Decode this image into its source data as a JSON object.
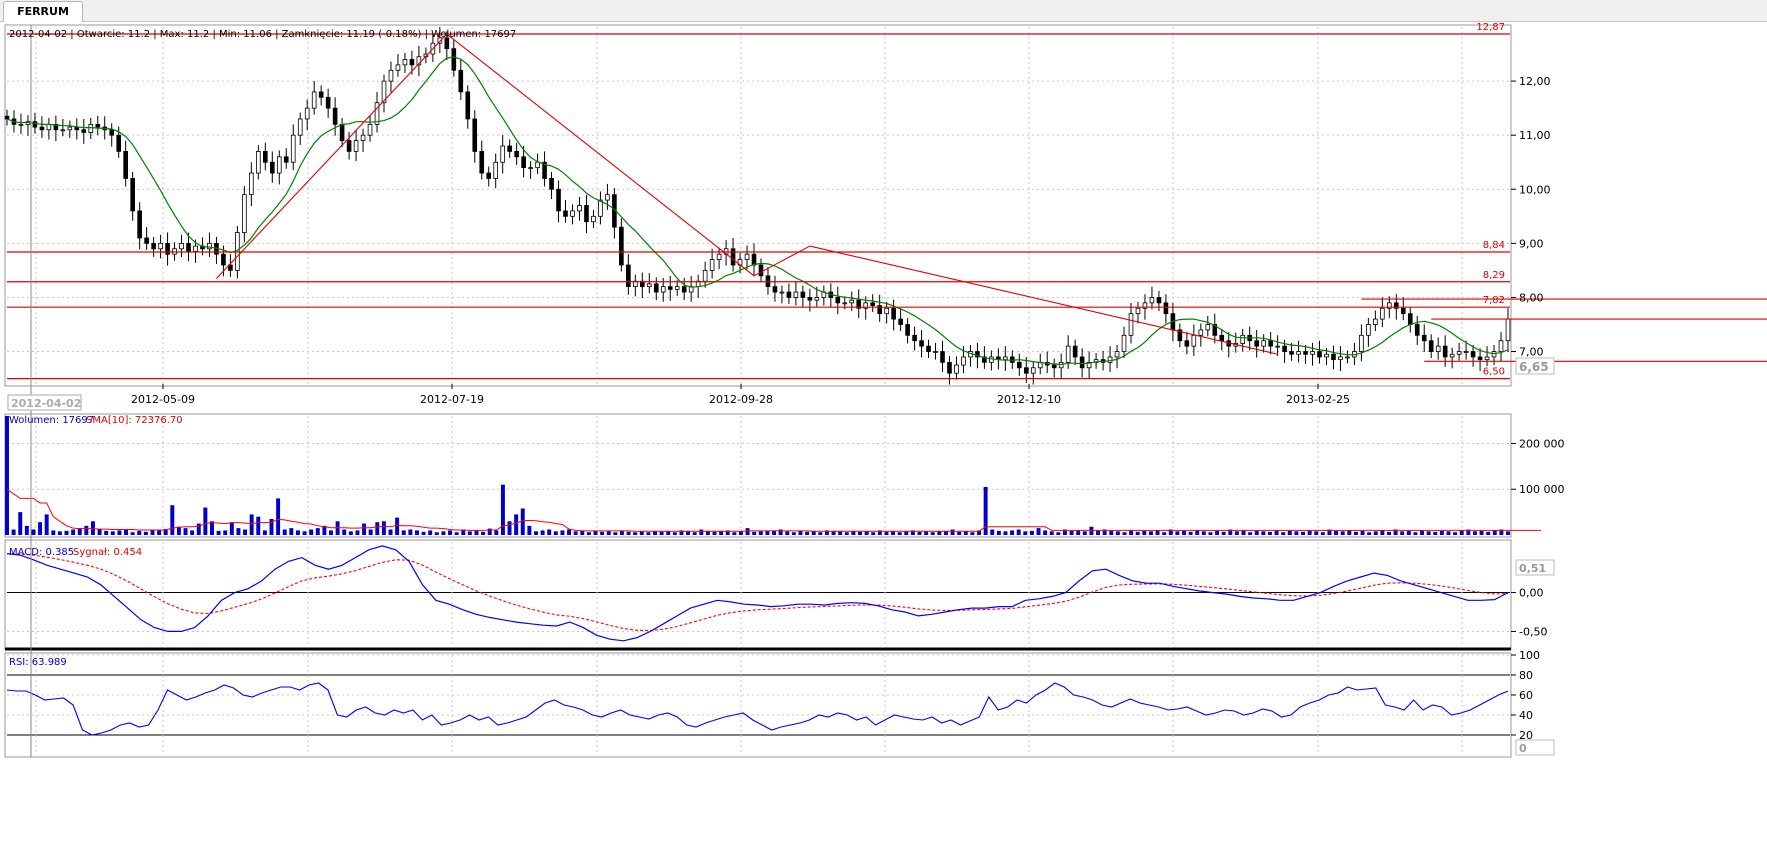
{
  "tab": {
    "label": "FERRUM"
  },
  "info_bar": "2012-04-02 | Otwarcie: 11.2 | Max: 11.2 | Min: 11.06 | Zamknięcie: 11.19 (-0.18%)  | Wolumen: 17697",
  "colors": {
    "candle": "#000000",
    "sma": "#008000",
    "level": "#e00000",
    "volume": "#0000cc",
    "macd": "#0000ff",
    "signal": "#ff0000",
    "rsi": "#0000ff",
    "grid": "#c8c8c8"
  },
  "chart_data": [
    {
      "type": "candlestick",
      "panel": "price",
      "x_labels": [
        "2012-05-09",
        "2012-07-19",
        "2012-09-28",
        "2012-12-10",
        "2013-02-25"
      ],
      "cursor_date": "2012-04-02",
      "y_ticks": [
        "12,00",
        "11,00",
        "10,00",
        "9,00",
        "8,00",
        "7,00"
      ],
      "ylim": [
        6.4,
        13.0
      ],
      "last_price_label": "6,65",
      "levels": [
        {
          "value": 12.87,
          "label": "12,87"
        },
        {
          "value": 8.84,
          "label": "8,84"
        },
        {
          "value": 8.29,
          "label": "8,29"
        },
        {
          "value": 7.82,
          "label": "7,82"
        },
        {
          "value": 6.5,
          "label": "6,50"
        }
      ],
      "overlay": "moving average",
      "close_series": [
        11.3,
        11.2,
        11.2,
        11.25,
        11.15,
        11.1,
        11.2,
        11.1,
        11.1,
        11.15,
        11.1,
        11.05,
        11.2,
        11.15,
        11.1,
        11.0,
        10.7,
        10.2,
        9.6,
        9.1,
        9.0,
        8.9,
        9.0,
        8.8,
        8.9,
        9.0,
        8.85,
        8.95,
        8.9,
        9.0,
        8.8,
        8.6,
        8.5,
        9.2,
        9.9,
        10.3,
        10.7,
        10.5,
        10.3,
        10.6,
        10.5,
        11.0,
        11.3,
        11.5,
        11.8,
        11.7,
        11.5,
        11.2,
        10.9,
        10.7,
        10.9,
        11.0,
        11.2,
        11.6,
        12.0,
        12.2,
        12.3,
        12.4,
        12.3,
        12.45,
        12.5,
        12.7,
        12.8,
        12.6,
        12.2,
        11.8,
        11.3,
        10.7,
        10.3,
        10.2,
        10.5,
        10.8,
        10.7,
        10.6,
        10.4,
        10.4,
        10.5,
        10.2,
        10.0,
        9.6,
        9.5,
        9.6,
        9.7,
        9.4,
        9.5,
        9.8,
        9.9,
        9.3,
        8.6,
        8.2,
        8.3,
        8.2,
        8.25,
        8.1,
        8.2,
        8.15,
        8.2,
        8.1,
        8.2,
        8.3,
        8.5,
        8.7,
        8.8,
        8.9,
        8.6,
        8.7,
        8.8,
        8.6,
        8.4,
        8.2,
        8.1,
        8.1,
        8.0,
        8.1,
        8.0,
        7.95,
        8.0,
        8.1,
        8.0,
        7.9,
        7.9,
        7.95,
        7.8,
        7.9,
        7.85,
        7.7,
        7.8,
        7.6,
        7.5,
        7.3,
        7.2,
        7.1,
        7.0,
        7.0,
        6.8,
        6.6,
        6.75,
        6.9,
        7.0,
        6.9,
        6.8,
        6.9,
        6.85,
        6.9,
        6.8,
        6.7,
        6.6,
        6.7,
        6.8,
        6.75,
        6.7,
        6.8,
        7.1,
        6.9,
        6.7,
        6.8,
        6.85,
        6.8,
        6.9,
        7.0,
        7.3,
        7.7,
        7.8,
        7.9,
        8.0,
        7.9,
        7.7,
        7.4,
        7.2,
        7.1,
        7.3,
        7.4,
        7.5,
        7.3,
        7.2,
        7.1,
        7.15,
        7.3,
        7.2,
        7.1,
        7.2,
        7.1,
        7.1,
        7.0,
        6.95,
        7.0,
        6.95,
        7.0,
        6.9,
        6.95,
        6.85,
        6.9,
        6.9,
        7.0,
        7.3,
        7.5,
        7.6,
        7.8,
        7.9,
        7.8,
        7.7,
        7.5,
        7.3,
        7.2,
        7.0,
        7.1,
        6.9,
        6.95,
        7.0,
        7.0,
        6.9,
        6.85,
        6.9,
        7.0,
        7.2,
        7.6
      ]
    },
    {
      "type": "bar",
      "panel": "volume",
      "title": "Wolumen: 17697",
      "overlay_label": "SMA[10]: 72376.70",
      "y_ticks": [
        "200 000",
        "100 000"
      ],
      "ylim": [
        0,
        260000
      ],
      "bar_values": [
        260000,
        12000,
        50000,
        20000,
        12000,
        28000,
        45000,
        10000,
        8000,
        9000,
        12000,
        15000,
        20000,
        30000,
        12000,
        9000,
        8000,
        10000,
        12000,
        6000,
        9000,
        7000,
        10000,
        11000,
        13000,
        65000,
        18000,
        15000,
        10000,
        25000,
        60000,
        30000,
        9000,
        10000,
        28000,
        15000,
        12000,
        45000,
        40000,
        10000,
        35000,
        80000,
        12000,
        15000,
        10000,
        8000,
        12000,
        15000,
        20000,
        10000,
        30000,
        12000,
        8000,
        10000,
        25000,
        12000,
        28000,
        30000,
        12000,
        38000,
        10000,
        12000,
        10000,
        7000,
        10000,
        6000,
        8000,
        10000,
        6000,
        12000,
        8000,
        10000,
        7000,
        14000,
        10000,
        110000,
        30000,
        45000,
        58000,
        20000,
        8000,
        10000,
        12000,
        8000,
        10000,
        12000,
        8000,
        10000,
        6000,
        9000,
        7000,
        8000,
        6000,
        10000,
        7000,
        6000,
        8000,
        6000,
        9000,
        7000,
        8000,
        6000,
        10000,
        8000,
        6000,
        12000,
        8000,
        7000,
        9000,
        10000,
        6000,
        8000,
        15000,
        7000,
        8000,
        9000,
        10000,
        12000,
        8000,
        6000,
        9000,
        7000,
        8000,
        6000,
        10000,
        9000,
        8000,
        6000,
        9000,
        7000,
        8000,
        6000,
        10000,
        7000,
        9000,
        6000,
        8000,
        10000,
        7000,
        8000,
        6000,
        9000,
        8000,
        12000,
        7000,
        8000,
        6000,
        10000,
        105000,
        12000,
        9000,
        8000,
        10000,
        12000,
        8000,
        9000,
        15000,
        10000,
        8000,
        6000,
        12000,
        9000,
        10000,
        8000,
        18000,
        10000,
        12000,
        9000,
        8000,
        6000,
        10000,
        7000,
        9000,
        8000,
        10000,
        6000,
        12000,
        8000,
        9000,
        7000,
        10000,
        8000,
        6000,
        9000,
        7000,
        12000,
        8000,
        10000,
        6000,
        9000,
        8000,
        7000,
        10000,
        6000,
        9000,
        8000,
        7000,
        10000,
        8000,
        6000,
        12000,
        9000,
        8000,
        10000,
        7000,
        9000,
        6000,
        8000,
        10000,
        7000,
        12000,
        8000,
        9000,
        6000,
        10000,
        8000,
        7000,
        9000,
        8000,
        6000,
        10000,
        12000,
        8000,
        9000,
        7000,
        10000,
        12000,
        8000
      ],
      "sma_values": [
        100000,
        90000,
        80000,
        80000,
        80000,
        70000,
        70000,
        40000,
        30000,
        20000,
        15000,
        14000,
        14000,
        14000,
        13000,
        13000,
        12000,
        12000,
        12000,
        12000,
        11000,
        11000,
        11000,
        11000,
        11000,
        15000,
        17000,
        18000,
        18000,
        19000,
        25000,
        27000,
        26000,
        25000,
        27000,
        27000,
        26000,
        25000,
        27000,
        27000,
        28000,
        34000,
        33000,
        30000,
        28000,
        25000,
        24000,
        20000,
        18000,
        16000,
        16000,
        16000,
        15000,
        15000,
        16000,
        16000,
        18000,
        19000,
        18000,
        21000,
        20000,
        20000,
        19000,
        17000,
        15000,
        15000,
        14000,
        12000,
        11000,
        11000,
        10000,
        10000,
        10000,
        11000,
        11000,
        20000,
        22000,
        26000,
        31000,
        32000,
        31000,
        29000,
        28000,
        25000,
        23000,
        13000,
        10000,
        9000,
        9000,
        9000,
        9000,
        9000,
        9000,
        9000,
        9000,
        8000,
        8000,
        8000,
        8000,
        8000,
        8000,
        8000,
        8000,
        8000,
        8000,
        8000,
        8000,
        8000,
        8000,
        8000,
        8000,
        8000,
        9000,
        9000,
        9000,
        9000,
        9000,
        9000,
        9000,
        9000,
        9000,
        9000,
        8000,
        8000,
        8000,
        8000,
        8000,
        8000,
        8000,
        8000,
        8000,
        8000,
        8000,
        8000,
        8000,
        8000,
        8000,
        8000,
        8000,
        8000,
        8000,
        8000,
        8000,
        8000,
        8000,
        8000,
        8000,
        8000,
        18000,
        18000,
        18000,
        18000,
        18000,
        18000,
        18000,
        18000,
        18000,
        18000,
        10000,
        10000,
        10000,
        10000,
        10000,
        10000,
        10000,
        10000,
        10000,
        10000,
        10000,
        10000,
        10000,
        10000,
        10000,
        10000,
        10000,
        10000,
        10000,
        10000,
        10000,
        10000,
        10000,
        10000,
        10000,
        10000,
        10000,
        10000,
        10000,
        10000,
        10000,
        10000,
        10000,
        10000,
        10000,
        10000,
        10000,
        10000,
        10000,
        10000,
        10000,
        10000,
        10000,
        10000,
        10000,
        10000,
        10000,
        10000,
        10000,
        10000,
        10000,
        10000,
        10000,
        10000,
        10000,
        10000,
        10000,
        10000,
        10000,
        10000,
        10000,
        10000,
        10000,
        10000,
        10000,
        10000,
        10000,
        10000,
        10000,
        10000,
        10000,
        10000,
        10000,
        10000,
        10000
      ]
    },
    {
      "type": "line",
      "panel": "macd",
      "title": "MACD: 0.385",
      "signal_label": "Sygnał: 0.454",
      "y_ticks": [
        "0,00",
        "-0,50"
      ],
      "last_value_label": "0,51",
      "ylim": [
        -0.7,
        0.65
      ],
      "macd_values": [
        0.5,
        0.48,
        0.42,
        0.35,
        0.3,
        0.25,
        0.2,
        0.1,
        -0.05,
        -0.2,
        -0.35,
        -0.45,
        -0.5,
        -0.5,
        -0.45,
        -0.3,
        -0.1,
        0.0,
        0.05,
        0.15,
        0.3,
        0.4,
        0.45,
        0.35,
        0.3,
        0.35,
        0.45,
        0.55,
        0.6,
        0.55,
        0.4,
        0.1,
        -0.1,
        -0.15,
        -0.22,
        -0.28,
        -0.32,
        -0.35,
        -0.38,
        -0.4,
        -0.42,
        -0.43,
        -0.38,
        -0.45,
        -0.55,
        -0.6,
        -0.62,
        -0.58,
        -0.5,
        -0.4,
        -0.3,
        -0.2,
        -0.15,
        -0.1,
        -0.12,
        -0.15,
        -0.16,
        -0.18,
        -0.17,
        -0.15,
        -0.15,
        -0.16,
        -0.14,
        -0.13,
        -0.14,
        -0.17,
        -0.22,
        -0.25,
        -0.3,
        -0.28,
        -0.25,
        -0.22,
        -0.2,
        -0.2,
        -0.18,
        -0.18,
        -0.1,
        -0.08,
        -0.05,
        0.0,
        0.15,
        0.28,
        0.3,
        0.22,
        0.15,
        0.12,
        0.12,
        0.08,
        0.05,
        0.02,
        0.0,
        -0.02,
        -0.05,
        -0.07,
        -0.08,
        -0.1,
        -0.1,
        -0.05,
        0.0,
        0.08,
        0.15,
        0.2,
        0.25,
        0.22,
        0.15,
        0.1,
        0.05,
        0.0,
        -0.05,
        -0.1,
        -0.1,
        -0.09,
        0.0
      ]
    },
    {
      "type": "line",
      "panel": "rsi",
      "title": "RSI: 63.989",
      "y_ticks": [
        "100",
        "80",
        "60",
        "40",
        "20"
      ],
      "last_value_label": "0",
      "ylim": [
        0,
        100
      ],
      "rsi_values": [
        65,
        64,
        64,
        60,
        55,
        56,
        57,
        50,
        25,
        20,
        22,
        25,
        30,
        32,
        28,
        30,
        45,
        65,
        60,
        55,
        58,
        62,
        65,
        70,
        67,
        60,
        58,
        62,
        65,
        68,
        68,
        65,
        70,
        72,
        65,
        40,
        38,
        45,
        48,
        42,
        40,
        45,
        42,
        45,
        35,
        40,
        30,
        32,
        35,
        40,
        35,
        38,
        30,
        32,
        35,
        38,
        45,
        52,
        55,
        50,
        48,
        45,
        40,
        38,
        42,
        45,
        40,
        38,
        36,
        40,
        42,
        38,
        30,
        28,
        32,
        35,
        38,
        40,
        42,
        35,
        30,
        25,
        28,
        30,
        32,
        35,
        40,
        38,
        42,
        40,
        35,
        38,
        30,
        35,
        40,
        38,
        36,
        35,
        38,
        32,
        35,
        30,
        34,
        38,
        58,
        45,
        48,
        55,
        52,
        60,
        65,
        72,
        68,
        60,
        58,
        55,
        50,
        48,
        52,
        56,
        52,
        50,
        48,
        45,
        46,
        48,
        44,
        40,
        42,
        45,
        44,
        40,
        42,
        46,
        44,
        38,
        40,
        48,
        52,
        55,
        60,
        62,
        68,
        65,
        66,
        67,
        50,
        48,
        45,
        55,
        45,
        50,
        48,
        40,
        42,
        45,
        50,
        55,
        60,
        64
      ]
    }
  ]
}
